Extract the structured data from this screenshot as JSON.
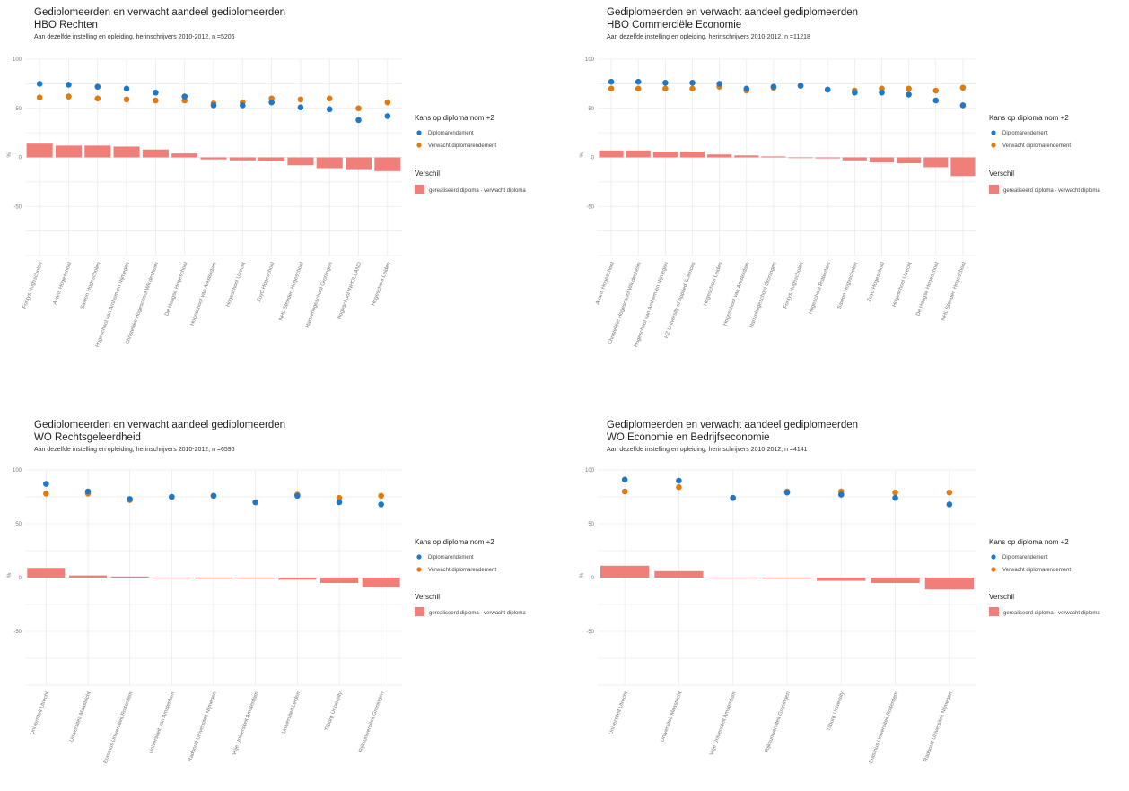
{
  "colors": {
    "diploma": "#1f77c8",
    "verwacht": "#e07b10",
    "verschil": "#f07f7a",
    "grid": "#ebebeb"
  },
  "chart_data": [
    {
      "type": "bar",
      "title": "Gediplomeerden en verwacht aandeel gediplomeerden",
      "subtitle": "HBO Rechten",
      "caption": "Aan dezelfde instelling en opleiding, herinschrijvers 2010-2012, n =5206",
      "ylabel": "%",
      "ylim": [
        -100,
        100
      ],
      "yticks": [
        -50,
        0,
        50,
        100
      ],
      "ytick_labels": [
        "-50",
        "0",
        "50",
        "100"
      ],
      "categories": [
        "Fontys Hogescholen",
        "Avans Hogeschool",
        "Saxion Hogescholen",
        "Hogeschool van Arnhem en Nijmegen",
        "Christelijke Hogeschool Windesheim",
        "De Haagse Hogeschool",
        "Hogeschool van Amsterdam",
        "Hogeschool Utrecht",
        "Zuyd Hogeschool",
        "NHL Stenden Hogeschool",
        "Hanzehogeschool Groningen",
        "Hogeschool INHOLLAND",
        "Hogeschool Leiden"
      ],
      "series": [
        {
          "name": "Diplomarendement",
          "type": "scatter",
          "values": [
            75,
            74,
            72,
            70,
            66,
            62,
            53,
            53,
            56,
            51,
            49,
            38,
            42
          ]
        },
        {
          "name": "Verwacht diplomarendement",
          "type": "scatter",
          "values": [
            61,
            62,
            60,
            59,
            58,
            58,
            55,
            56,
            60,
            59,
            60,
            50,
            56
          ]
        },
        {
          "name": "gerealiseerd diploma - verwacht diploma",
          "type": "bar",
          "values": [
            14,
            12,
            12,
            11,
            8,
            4,
            -2,
            -3,
            -4,
            -8,
            -11,
            -12,
            -14
          ]
        }
      ],
      "legend": {
        "title": "Kans op diploma nom +2",
        "items": [
          "Diplomarendement",
          "Verwacht diplomarendement"
        ],
        "diff_title": "Verschil",
        "diff_item": "gerealiseerd diploma - verwacht diploma",
        "position": "right"
      },
      "grid": true
    },
    {
      "type": "bar",
      "title": "Gediplomeerden en verwacht aandeel gediplomeerden",
      "subtitle": "HBO Commerciële Economie",
      "caption": "Aan dezelfde instelling en opleiding, herinschrijvers 2010-2012, n =11218",
      "ylabel": "%",
      "ylim": [
        -100,
        100
      ],
      "yticks": [
        -50,
        0,
        50,
        100
      ],
      "ytick_labels": [
        "-50",
        "0",
        "50",
        "100"
      ],
      "categories": [
        "Avans Hogeschool",
        "Christelijke Hogeschool Windesheim",
        "Hogeschool van Arnhem en Nijmegen",
        "HZ University of Applied Sciences",
        "Hogeschool Leiden",
        "Hogeschool van Amsterdam",
        "Hanzehogeschool Groningen",
        "Fontys Hogescholen",
        "Hogeschool Rotterdam",
        "Saxion Hogescholen",
        "Zuyd Hogeschool",
        "Hogeschool Utrecht",
        "De Haagse Hogeschool",
        "NHL Stenden Hogeschool"
      ],
      "series": [
        {
          "name": "Diplomarendement",
          "type": "scatter",
          "values": [
            77,
            77,
            76,
            76,
            75,
            70,
            72,
            73,
            69,
            66,
            66,
            64,
            58,
            53
          ]
        },
        {
          "name": "Verwacht diplomarendement",
          "type": "scatter",
          "values": [
            70,
            70,
            70,
            70,
            72,
            68,
            71,
            73,
            69,
            68,
            70,
            70,
            68,
            71
          ]
        },
        {
          "name": "gerealiseerd diploma - verwacht diploma",
          "type": "bar",
          "values": [
            7,
            7,
            6,
            6,
            3,
            2,
            1,
            0,
            -1,
            -3,
            -5,
            -6,
            -10,
            -19
          ]
        }
      ],
      "legend": {
        "title": "Kans op diploma nom +2",
        "items": [
          "Diplomarendement",
          "Verwacht diplomarendement"
        ],
        "diff_title": "Verschil",
        "diff_item": "gerealiseerd diploma - verwacht diploma",
        "position": "right"
      },
      "grid": true
    },
    {
      "type": "bar",
      "title": "Gediplomeerden en verwacht aandeel gediplomeerden",
      "subtitle": "WO Rechtsgeleerdheid",
      "caption": "Aan dezelfde instelling en opleiding, herinschrijvers 2010-2012, n =6596",
      "ylabel": "%",
      "ylim": [
        -100,
        100
      ],
      "yticks": [
        -50,
        0,
        50,
        100
      ],
      "ytick_labels": [
        "-50",
        "0",
        "50",
        "100"
      ],
      "categories": [
        "Universiteit Utrecht",
        "Universiteit Maastricht",
        "Erasmus Universiteit Rotterdam",
        "Universiteit van Amsterdam",
        "Radboud Universiteit Nijmegen",
        "Vrije Universiteit Amsterdam",
        "Universiteit Leiden",
        "Tilburg University",
        "Rijksuniversiteit Groningen"
      ],
      "series": [
        {
          "name": "Diplomarendement",
          "type": "scatter",
          "values": [
            87,
            80,
            73,
            75,
            76,
            70,
            76,
            70,
            68
          ]
        },
        {
          "name": "Verwacht diplomarendement",
          "type": "scatter",
          "values": [
            78,
            78,
            72,
            75,
            76,
            70,
            77,
            74,
            76
          ]
        },
        {
          "name": "gerealiseerd diploma - verwacht diploma",
          "type": "bar",
          "values": [
            9,
            2,
            1,
            0,
            -1,
            -1,
            -2,
            -5,
            -9
          ]
        }
      ],
      "legend": {
        "title": "Kans op diploma nom +2",
        "items": [
          "Diplomarendement",
          "Verwacht diplomarendement"
        ],
        "diff_title": "Verschil",
        "diff_item": "gerealiseerd diploma - verwacht diploma",
        "position": "right"
      },
      "grid": true
    },
    {
      "type": "bar",
      "title": "Gediplomeerden en verwacht aandeel gediplomeerden",
      "subtitle": "WO Economie en Bedrijfseconomie",
      "caption": "Aan dezelfde instelling en opleiding, herinschrijvers 2010-2012, n =4141",
      "ylabel": "%",
      "ylim": [
        -100,
        100
      ],
      "yticks": [
        -50,
        0,
        50,
        100
      ],
      "ytick_labels": [
        "-50",
        "0",
        "50",
        "100"
      ],
      "categories": [
        "Universiteit Utrecht",
        "Universiteit Maastricht",
        "Vrije Universiteit Amsterdam",
        "Rijksuniversiteit Groningen",
        "Tilburg University",
        "Erasmus Universiteit Rotterdam",
        "Radboud Universiteit Nijmegen"
      ],
      "series": [
        {
          "name": "Diplomarendement",
          "type": "scatter",
          "values": [
            91,
            90,
            74,
            79,
            77,
            74,
            68
          ]
        },
        {
          "name": "Verwacht diplomarendement",
          "type": "scatter",
          "values": [
            80,
            84,
            74,
            80,
            80,
            79,
            79
          ]
        },
        {
          "name": "gerealiseerd diploma - verwacht diploma",
          "type": "bar",
          "values": [
            11,
            6,
            0,
            -1,
            -3,
            -5,
            -11
          ]
        }
      ],
      "legend": {
        "title": "Kans op diploma nom +2",
        "items": [
          "Diplomarendement",
          "Verwacht diplomarendement"
        ],
        "diff_title": "Verschil",
        "diff_item": "gerealiseerd diploma - verwacht diploma",
        "position": "right"
      },
      "grid": true
    }
  ]
}
